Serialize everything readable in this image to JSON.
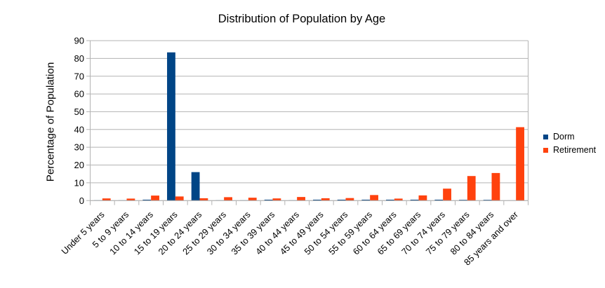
{
  "chart_data": {
    "type": "bar",
    "title": "Distribution of Population by Age",
    "xlabel": "",
    "ylabel": "Percentage of Population",
    "ylim": [
      0,
      90
    ],
    "ytick_step": 10,
    "yticks": [
      0,
      10,
      20,
      30,
      40,
      50,
      60,
      70,
      80,
      90
    ],
    "grid": true,
    "legend_position": "right",
    "categories": [
      "Under 5 years",
      "5 to 9 years",
      "10 to 14 years",
      "15 to 19 years",
      "20 to 24 years",
      "25 to 29 years",
      "30 to 34 years",
      "35 to 39 years",
      "40 to 44 years",
      "45 to 49 years",
      "50 to 54 years",
      "55 to 59 years",
      "60 to 64 years",
      "65 to 69 years",
      "70 to 74 years",
      "75 to 79 years",
      "80 to 84 years",
      "85 years and over"
    ],
    "series": [
      {
        "name": "Dorm",
        "color": "#004586",
        "values": [
          0.15,
          0.15,
          0.5,
          83.4,
          16.0,
          0.15,
          0.15,
          0.5,
          0.15,
          0.5,
          0.5,
          0.5,
          0.5,
          0.5,
          0.5,
          0.4,
          0.4,
          0.1
        ]
      },
      {
        "name": "Retirement",
        "color": "#FF420E",
        "values": [
          1.2,
          1.1,
          2.8,
          2.3,
          1.3,
          1.9,
          1.6,
          1.2,
          2.0,
          1.3,
          1.4,
          3.1,
          1.1,
          2.9,
          6.7,
          13.8,
          15.5,
          41.3
        ]
      }
    ],
    "colors": {
      "grid": "#b3b3b3",
      "axis": "#b3b3b3",
      "text": "#000000",
      "background": "#ffffff"
    }
  }
}
